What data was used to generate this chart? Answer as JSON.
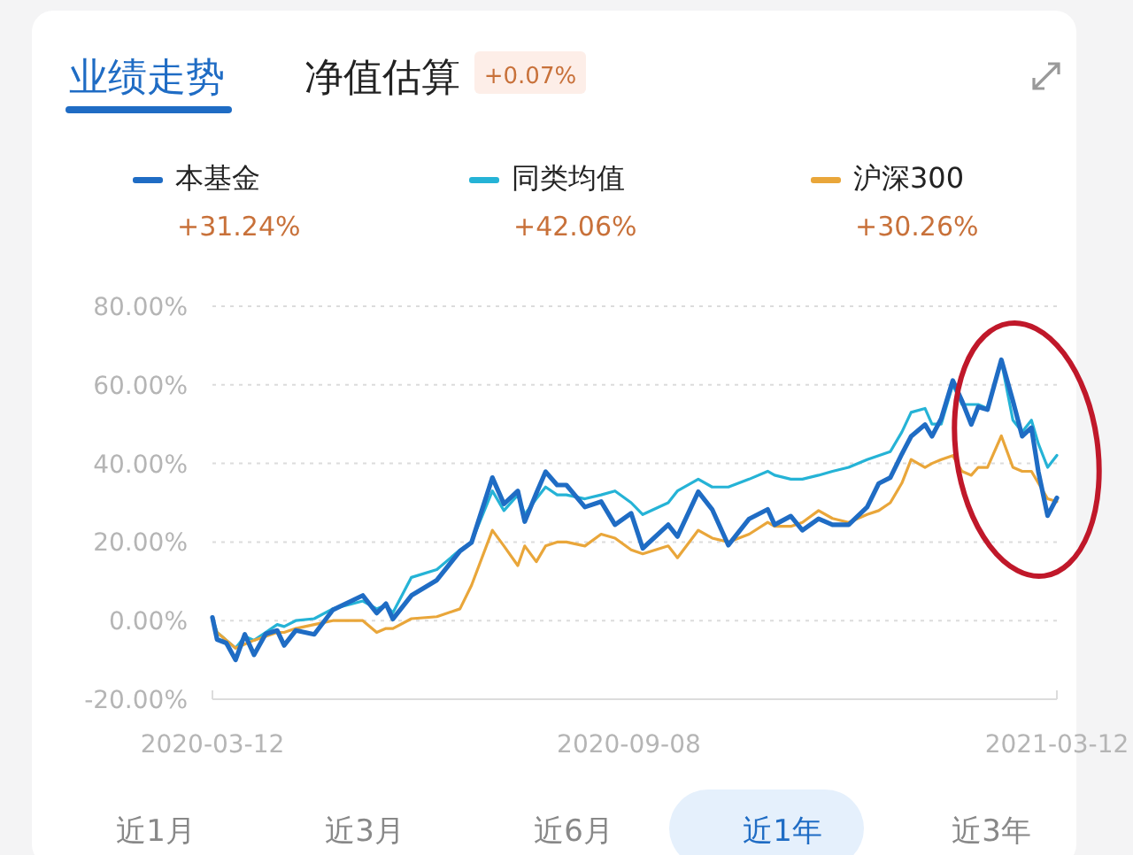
{
  "chart_data": {
    "type": "line",
    "x": [
      "2020-03-12",
      "2020-03-14",
      "2020-03-18",
      "2020-03-22",
      "2020-03-26",
      "2020-03-30",
      "2020-04-04",
      "2020-04-09",
      "2020-04-12",
      "2020-04-17",
      "2020-04-25",
      "2020-05-03",
      "2020-05-16",
      "2020-05-22",
      "2020-05-26",
      "2020-05-29",
      "2020-06-06",
      "2020-06-17",
      "2020-06-27",
      "2020-07-02",
      "2020-07-11",
      "2020-07-16",
      "2020-07-22",
      "2020-07-25",
      "2020-07-30",
      "2020-08-03",
      "2020-08-08",
      "2020-08-12",
      "2020-08-20",
      "2020-08-27",
      "2020-09-02",
      "2020-09-09",
      "2020-09-14",
      "2020-09-25",
      "2020-09-29",
      "2020-10-08",
      "2020-10-14",
      "2020-10-21",
      "2020-10-30",
      "2020-11-07",
      "2020-11-10",
      "2020-11-17",
      "2020-11-22",
      "2020-11-29",
      "2020-12-05",
      "2020-12-12",
      "2020-12-20",
      "2020-12-25",
      "2020-12-30",
      "2021-01-04",
      "2021-01-08",
      "2021-01-14",
      "2021-01-17",
      "2021-01-21",
      "2021-01-26",
      "2021-01-30",
      "2021-02-03",
      "2021-02-06",
      "2021-02-10",
      "2021-02-16",
      "2021-02-21",
      "2021-02-25",
      "2021-03-01",
      "2021-03-04",
      "2021-03-08",
      "2021-03-12"
    ],
    "series": [
      {
        "name": "同类均值",
        "color": "#25b3d6",
        "values": [
          0.8,
          -3,
          -5,
          -7,
          -4,
          -5,
          -3,
          -1,
          -1.5,
          0,
          0.5,
          3,
          5,
          3,
          4,
          2,
          11,
          13,
          18,
          20,
          33,
          28,
          32,
          27,
          31,
          34,
          32,
          32,
          31,
          32,
          33,
          30,
          27,
          30,
          33,
          36,
          34,
          34,
          36,
          38,
          37,
          36,
          36,
          37,
          38,
          39,
          41,
          42,
          43,
          48,
          53,
          54,
          50,
          50,
          60,
          55,
          55,
          55,
          54,
          66,
          51,
          48,
          51,
          45,
          39,
          42.06
        ]
      },
      {
        "name": "沪深300",
        "color": "#e9a63a",
        "values": [
          0,
          -3,
          -5,
          -7,
          -6,
          -5,
          -4,
          -3,
          -3,
          -2,
          -1,
          0,
          0,
          -3,
          -2,
          -2,
          0.5,
          1,
          3,
          9,
          23,
          19,
          14,
          19,
          15,
          19,
          20,
          20,
          19,
          22,
          21,
          18,
          17,
          19,
          16,
          23,
          21,
          20,
          22,
          25,
          24,
          24,
          25,
          28,
          26,
          25,
          27,
          28,
          30,
          35,
          41,
          39,
          40,
          41,
          42,
          38,
          37,
          39,
          39,
          47,
          39,
          38,
          38,
          35,
          31,
          30.26
        ]
      },
      {
        "name": "本基金",
        "color": "#1f6cc4",
        "values": [
          0.8,
          -4.8,
          -5.7,
          -10,
          -3.5,
          -8.7,
          -3.4,
          -2.5,
          -6.3,
          -2.5,
          -3.5,
          2.7,
          6.4,
          1.9,
          4.3,
          0.4,
          6.4,
          10.3,
          17.7,
          19.9,
          36.4,
          29.7,
          33,
          25.2,
          32.4,
          37.9,
          34.5,
          34.5,
          28.9,
          30.3,
          24.4,
          27.3,
          18.4,
          24.4,
          21.4,
          32.8,
          28.3,
          19.2,
          25.9,
          28.3,
          24.4,
          26.6,
          23,
          25.9,
          24.4,
          24.4,
          28.9,
          34.9,
          36.4,
          42.4,
          46.9,
          49.9,
          46.9,
          51.4,
          61.1,
          55.9,
          49.9,
          54.4,
          53.7,
          66.4,
          55.9,
          46.9,
          49.1,
          37.9,
          26.7,
          31.24
        ]
      }
    ],
    "xlim": [
      "2020-03-12",
      "2021-03-12"
    ],
    "xticks": [
      "2020-03-12",
      "2020-09-08",
      "2021-03-12"
    ],
    "ylim": [
      -20,
      80
    ],
    "yticks": [
      {
        "value": -20,
        "label": "-20.00%"
      },
      {
        "value": 0,
        "label": "0.00%"
      },
      {
        "value": 20,
        "label": "20.00%"
      },
      {
        "value": 40,
        "label": "40.00%"
      },
      {
        "value": 60,
        "label": "60.00%"
      },
      {
        "value": 80,
        "label": "80.00%"
      }
    ],
    "grid": "y",
    "legend": "top",
    "marker": "none",
    "line_style": "solid",
    "annotations": [
      "业绩走势",
      "净值估算",
      "+0.07%",
      "+42.06%",
      "+30.26%",
      "+31.24%",
      "近1月",
      "近3月",
      "近6月",
      "近1年",
      "近3年"
    ]
  }
}
